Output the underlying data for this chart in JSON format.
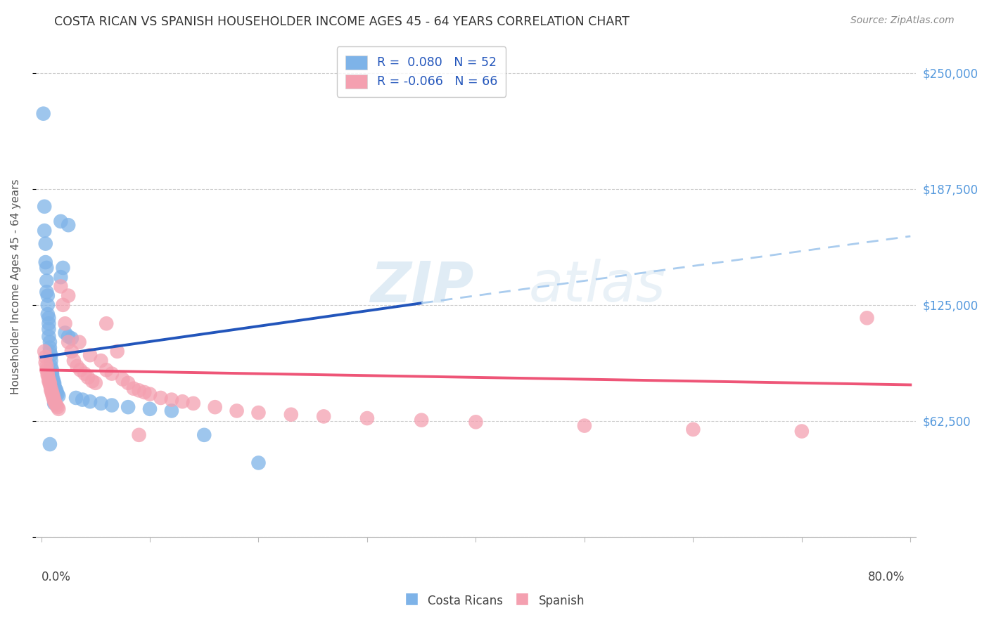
{
  "title": "COSTA RICAN VS SPANISH HOUSEHOLDER INCOME AGES 45 - 64 YEARS CORRELATION CHART",
  "source": "Source: ZipAtlas.com",
  "ylabel": "Householder Income Ages 45 - 64 years",
  "y_ticks": [
    0,
    62500,
    125000,
    187500,
    250000
  ],
  "y_tick_labels": [
    "",
    "$62,500",
    "$125,000",
    "$187,500",
    "$250,000"
  ],
  "x_min": 0.0,
  "x_max": 0.8,
  "y_min": 0,
  "y_max": 270000,
  "color_blue": "#7EB3E8",
  "color_pink": "#F4A0B0",
  "color_blue_line": "#2255BB",
  "color_pink_line": "#EE5577",
  "color_blue_dashed": "#AACCEE",
  "background_color": "#FFFFFF",
  "grid_color": "#CCCCCC",
  "watermark_color": "#DDEEFF",
  "blue_line_x0": 0.0,
  "blue_line_x1": 0.35,
  "blue_line_y0": 97000,
  "blue_line_y1": 126000,
  "dashed_line_x0": 0.35,
  "dashed_line_x1": 0.8,
  "dashed_line_y0": 126000,
  "dashed_line_y1": 162000,
  "pink_line_x0": 0.0,
  "pink_line_x1": 0.8,
  "pink_line_y0": 90000,
  "pink_line_y1": 82000,
  "cr_x": [
    0.002,
    0.003,
    0.003,
    0.004,
    0.004,
    0.005,
    0.005,
    0.005,
    0.006,
    0.006,
    0.006,
    0.007,
    0.007,
    0.007,
    0.007,
    0.008,
    0.008,
    0.008,
    0.009,
    0.009,
    0.009,
    0.01,
    0.01,
    0.01,
    0.011,
    0.011,
    0.012,
    0.012,
    0.013,
    0.014,
    0.014,
    0.015,
    0.016,
    0.018,
    0.02,
    0.022,
    0.025,
    0.028,
    0.032,
    0.038,
    0.045,
    0.055,
    0.065,
    0.08,
    0.1,
    0.12,
    0.15,
    0.2,
    0.025,
    0.018,
    0.012,
    0.008
  ],
  "cr_y": [
    228000,
    178000,
    165000,
    158000,
    148000,
    145000,
    138000,
    132000,
    130000,
    125000,
    120000,
    118000,
    115000,
    112000,
    108000,
    105000,
    102000,
    100000,
    98000,
    95000,
    92000,
    90000,
    88000,
    87000,
    85000,
    84000,
    83000,
    82000,
    80000,
    79000,
    78000,
    77000,
    76000,
    170000,
    145000,
    110000,
    108000,
    107000,
    75000,
    74000,
    73000,
    72000,
    71000,
    70000,
    69000,
    68000,
    55000,
    40000,
    168000,
    140000,
    72000,
    50000
  ],
  "sp_x": [
    0.003,
    0.004,
    0.004,
    0.005,
    0.005,
    0.006,
    0.006,
    0.007,
    0.007,
    0.008,
    0.008,
    0.009,
    0.009,
    0.01,
    0.01,
    0.011,
    0.011,
    0.012,
    0.012,
    0.013,
    0.014,
    0.015,
    0.016,
    0.018,
    0.02,
    0.022,
    0.025,
    0.028,
    0.03,
    0.033,
    0.036,
    0.04,
    0.043,
    0.047,
    0.05,
    0.055,
    0.06,
    0.065,
    0.07,
    0.075,
    0.08,
    0.085,
    0.09,
    0.095,
    0.1,
    0.11,
    0.12,
    0.13,
    0.14,
    0.16,
    0.18,
    0.2,
    0.23,
    0.26,
    0.3,
    0.35,
    0.4,
    0.5,
    0.6,
    0.7,
    0.76,
    0.025,
    0.035,
    0.045,
    0.06,
    0.09
  ],
  "sp_y": [
    100000,
    97000,
    94000,
    92000,
    90000,
    88000,
    87000,
    85000,
    84000,
    83000,
    82000,
    80000,
    79000,
    78000,
    77000,
    76000,
    75000,
    74000,
    73000,
    72000,
    71000,
    70000,
    69000,
    135000,
    125000,
    115000,
    105000,
    100000,
    95000,
    92000,
    90000,
    88000,
    86000,
    84000,
    83000,
    95000,
    90000,
    88000,
    100000,
    85000,
    83000,
    80000,
    79000,
    78000,
    77000,
    75000,
    74000,
    73000,
    72000,
    70000,
    68000,
    67000,
    66000,
    65000,
    64000,
    63000,
    62000,
    60000,
    58000,
    57000,
    118000,
    130000,
    105000,
    98000,
    115000,
    55000
  ]
}
